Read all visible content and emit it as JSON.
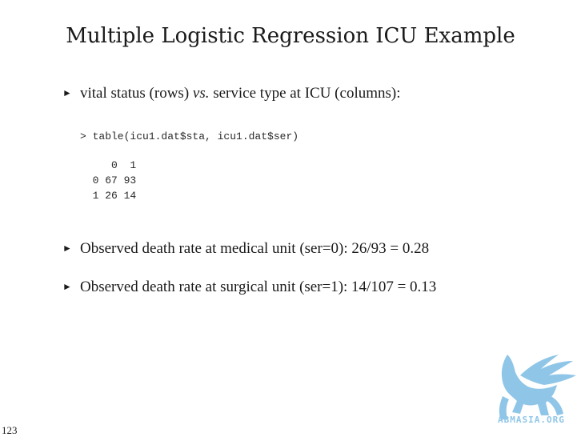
{
  "slide": {
    "title": "Multiple Logistic Regression ICU Example",
    "page_number": "123"
  },
  "bullets": [
    {
      "marker": "►",
      "text_before": "vital status (rows) ",
      "text_italic": "vs.",
      "text_after": " service type at ICU (columns):"
    },
    {
      "marker": "►",
      "text": "Observed death rate at medical unit (ser=0): 26/93 = 0.28"
    },
    {
      "marker": "►",
      "text": "Observed death rate at surgical unit (ser=1): 14/107 = 0.13"
    }
  ],
  "code": {
    "command": "> table(icu1.dat$sta, icu1.dat$ser)",
    "header_row": "     0  1",
    "rows": [
      "  0 67 93",
      "  1 26 14"
    ]
  },
  "logo": {
    "text": "ABMASIA.ORG",
    "color": "#8fc6e8"
  }
}
